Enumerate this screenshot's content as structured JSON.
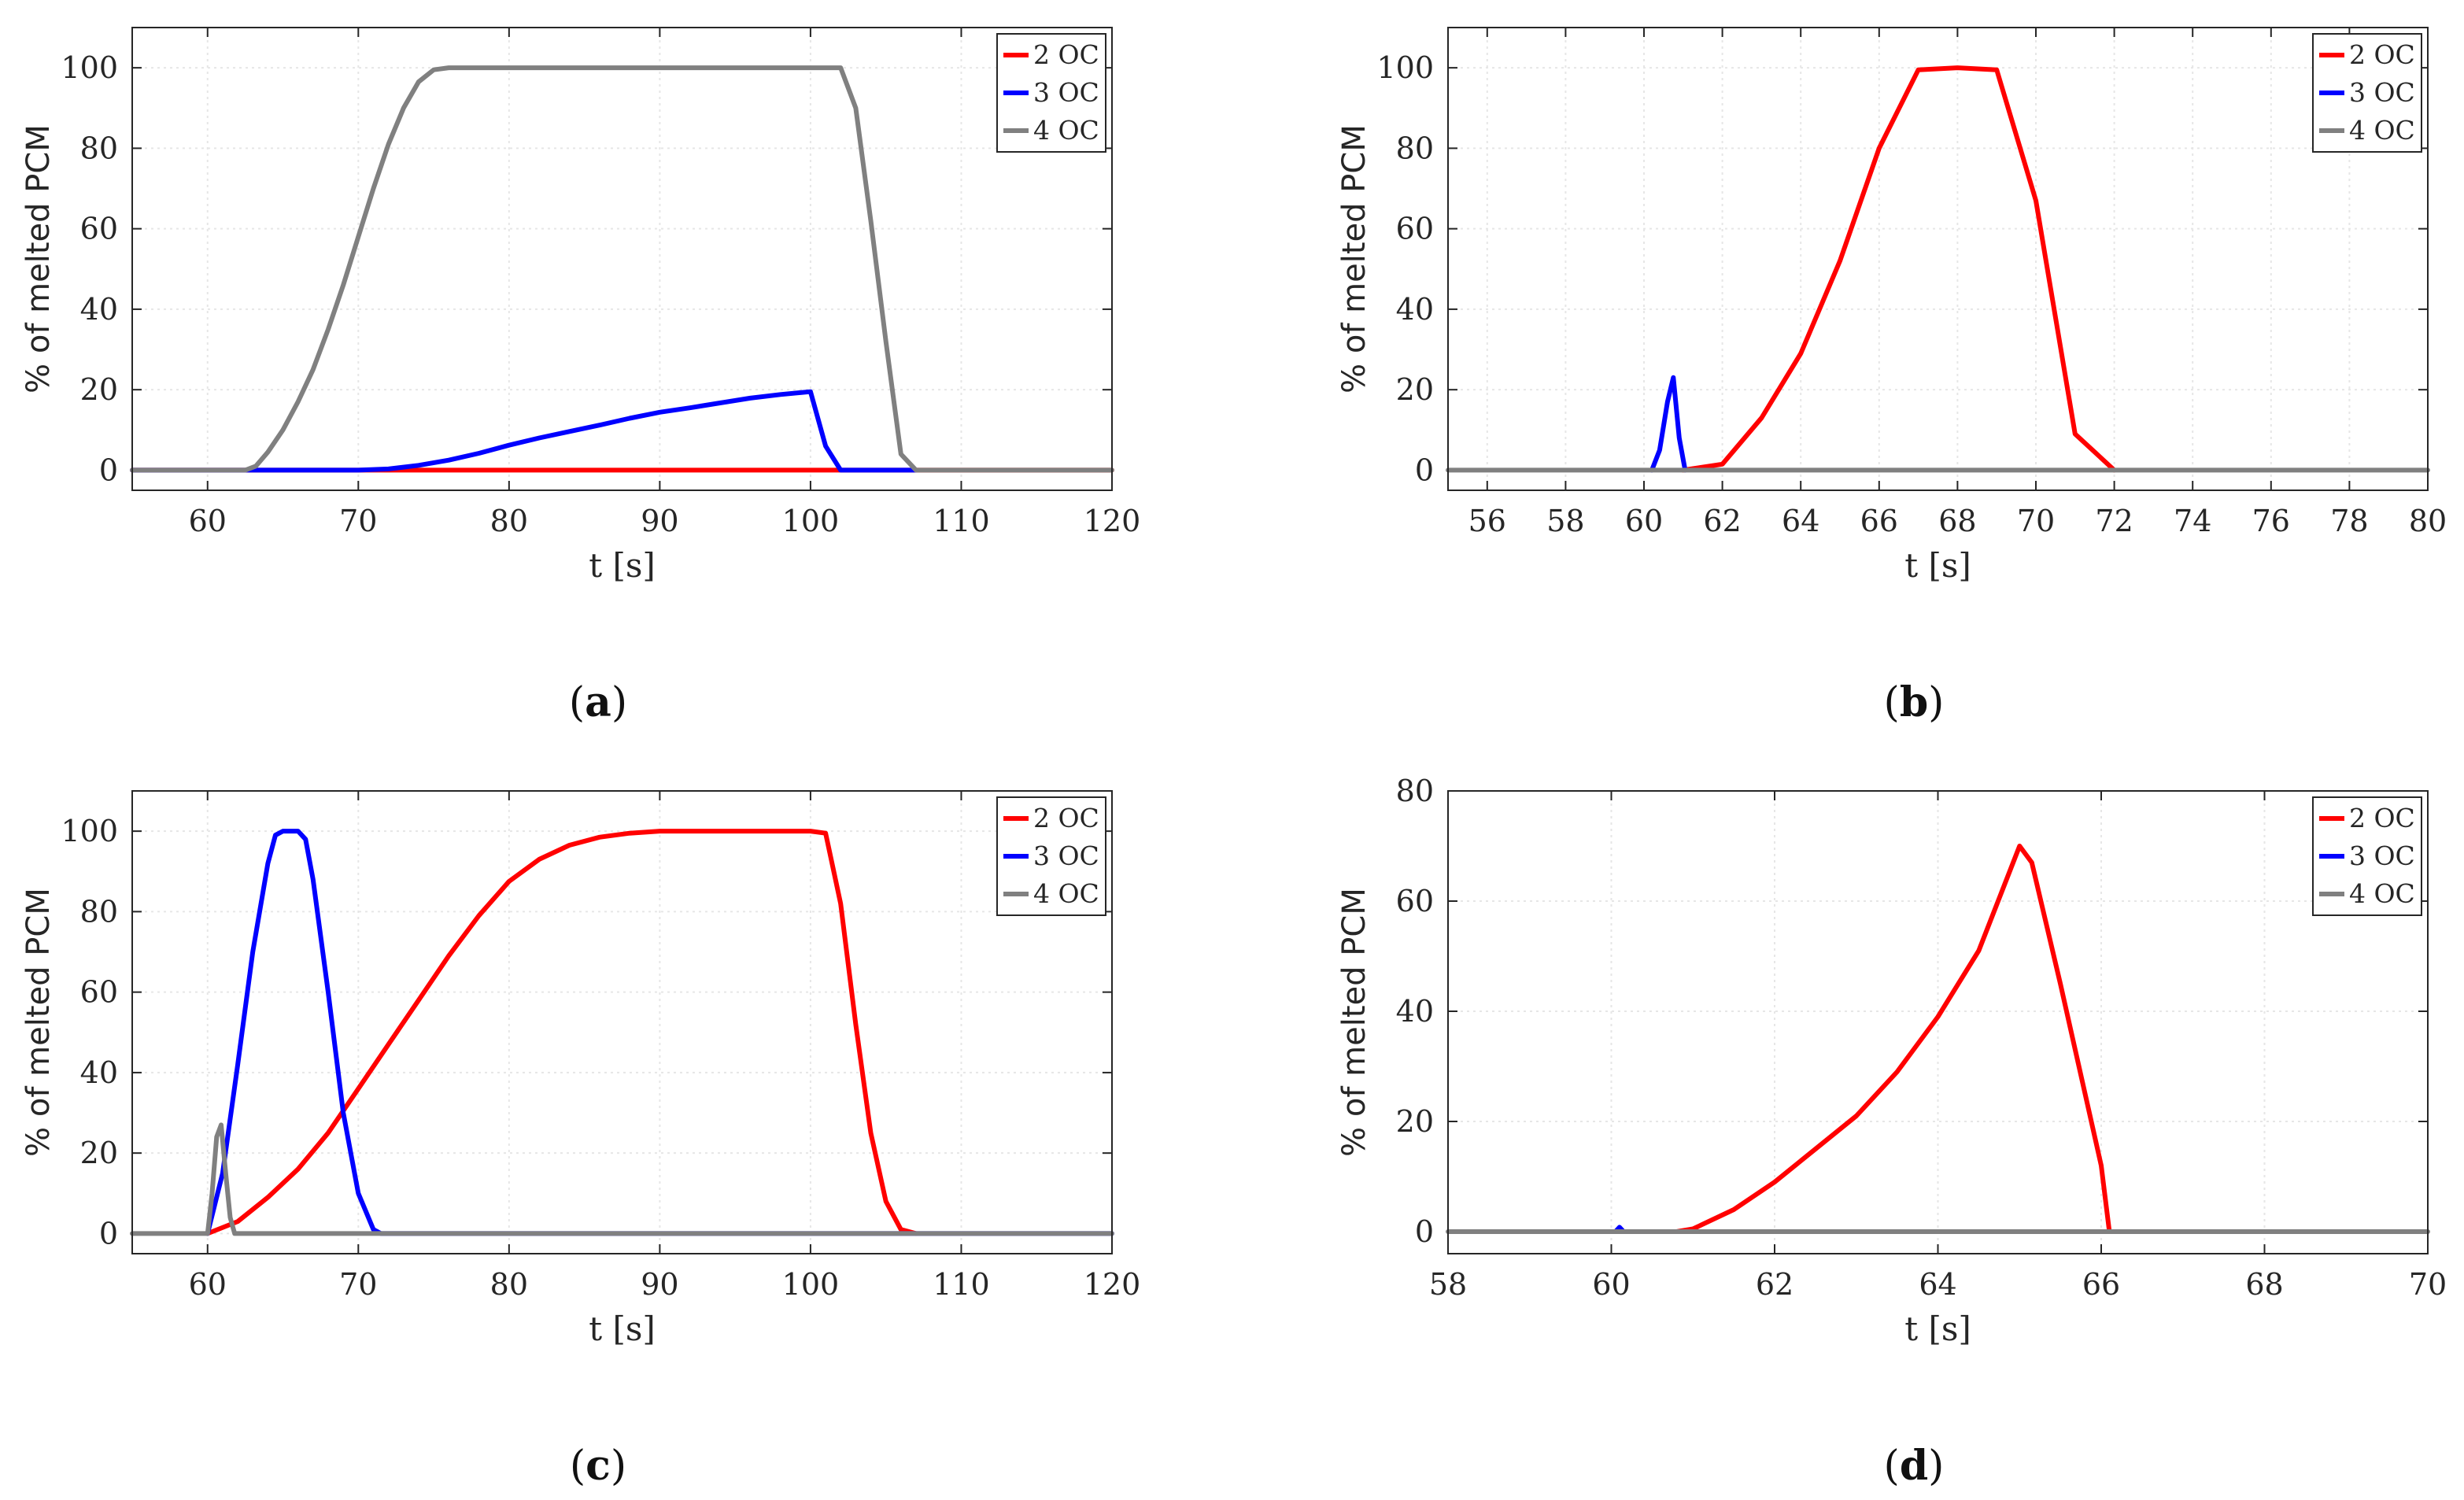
{
  "chart_data": [
    {
      "type": "line",
      "panel": "a",
      "caption": {
        "open": "(",
        "letter": "a",
        "close": ")"
      },
      "xlabel": "t [s]",
      "ylabel": "% of melted PCM",
      "xlim": [
        55,
        120
      ],
      "ylim": [
        -5,
        110
      ],
      "xticks": [
        60,
        70,
        80,
        90,
        100,
        110,
        120
      ],
      "yticks": [
        0,
        20,
        40,
        60,
        80,
        100
      ],
      "grid": true,
      "legend_position": "top-right",
      "series": [
        {
          "name": "2 OC",
          "color": "#ff0000",
          "x": [
            55,
            120
          ],
          "y": [
            0,
            0
          ]
        },
        {
          "name": "3 OC",
          "color": "#0000ff",
          "x": [
            55,
            70,
            72,
            74,
            76,
            78,
            80,
            82,
            84,
            86,
            88,
            90,
            92,
            94,
            96,
            98,
            100,
            101,
            102,
            107
          ],
          "y": [
            0,
            0,
            0.3,
            1.2,
            2.5,
            4.2,
            6.2,
            8.0,
            9.6,
            11.2,
            12.9,
            14.4,
            15.5,
            16.7,
            17.9,
            18.8,
            19.5,
            6,
            0,
            0
          ]
        },
        {
          "name": "4 OC",
          "color": "#808080",
          "x": [
            55,
            62.5,
            63.2,
            64,
            65,
            66,
            67,
            68,
            69,
            70,
            71,
            72,
            73,
            74,
            75,
            76,
            80,
            90,
            100,
            102,
            103,
            104,
            105,
            106,
            107,
            120
          ],
          "y": [
            0,
            0,
            1,
            4.5,
            10,
            17,
            25,
            35,
            46,
            58,
            70,
            81,
            90,
            96.5,
            99.5,
            100,
            100,
            100,
            100,
            100,
            90,
            62,
            32,
            4,
            0,
            0
          ]
        }
      ]
    },
    {
      "type": "line",
      "panel": "b",
      "caption": {
        "open": "(",
        "letter": "b",
        "close": ")"
      },
      "xlabel": "t [s]",
      "ylabel": "% of melted PCM",
      "xlim": [
        55,
        80
      ],
      "ylim": [
        -5,
        110
      ],
      "xticks": [
        56,
        58,
        60,
        62,
        64,
        66,
        68,
        70,
        72,
        74,
        76,
        78,
        80
      ],
      "yticks": [
        0,
        20,
        40,
        60,
        80,
        100
      ],
      "grid": true,
      "legend_position": "top-right",
      "series": [
        {
          "name": "2 OC",
          "color": "#ff0000",
          "x": [
            61,
            62,
            63,
            64,
            65,
            66,
            67,
            68,
            69,
            70,
            71,
            72
          ],
          "y": [
            0,
            1.5,
            13,
            29,
            52,
            80,
            99.5,
            100,
            99.5,
            67,
            9,
            0
          ]
        },
        {
          "name": "3 OC",
          "color": "#0000ff",
          "x": [
            60.2,
            60.4,
            60.6,
            60.75,
            60.9,
            61.05
          ],
          "y": [
            0,
            5,
            17,
            23,
            8,
            0
          ]
        },
        {
          "name": "4 OC",
          "color": "#808080",
          "x": [
            55,
            80
          ],
          "y": [
            0,
            0
          ]
        }
      ]
    },
    {
      "type": "line",
      "panel": "c",
      "caption": {
        "open": "(",
        "letter": "c",
        "close": ")"
      },
      "xlabel": "t [s]",
      "ylabel": "% of melted PCM",
      "xlim": [
        55,
        120
      ],
      "ylim": [
        -5,
        110
      ],
      "xticks": [
        60,
        70,
        80,
        90,
        100,
        110,
        120
      ],
      "yticks": [
        0,
        20,
        40,
        60,
        80,
        100
      ],
      "grid": true,
      "legend_position": "top-right",
      "series": [
        {
          "name": "2 OC",
          "color": "#ff0000",
          "x": [
            60,
            62,
            64,
            66,
            68,
            70,
            72,
            74,
            76,
            78,
            80,
            82,
            84,
            86,
            88,
            90,
            95,
            100,
            101,
            102,
            103,
            104,
            105,
            106,
            107
          ],
          "y": [
            0,
            3,
            9,
            16,
            25,
            36,
            47,
            58,
            69,
            79,
            87.5,
            93,
            96.5,
            98.5,
            99.5,
            100,
            100,
            100,
            99.5,
            82,
            52,
            25,
            8,
            1,
            0
          ]
        },
        {
          "name": "3 OC",
          "color": "#0000ff",
          "x": [
            60,
            61,
            62,
            63,
            64,
            64.5,
            65,
            66,
            66.5,
            67,
            68,
            69,
            70,
            71,
            71.5,
            120
          ],
          "y": [
            0,
            15,
            42,
            70,
            92,
            99,
            100,
            100,
            98,
            88,
            60,
            30,
            10,
            1,
            0,
            0
          ]
        },
        {
          "name": "4 OC",
          "color": "#808080",
          "x": [
            55,
            60,
            60.3,
            60.6,
            60.9,
            61.2,
            61.5,
            61.8,
            120
          ],
          "y": [
            0,
            0,
            10,
            24,
            27,
            15,
            4,
            0,
            0
          ]
        }
      ]
    },
    {
      "type": "line",
      "panel": "d",
      "caption": {
        "open": "(",
        "letter": "d",
        "close": ")"
      },
      "xlabel": "t [s]",
      "ylabel": "% of melted PCM",
      "xlim": [
        58,
        70
      ],
      "ylim": [
        -4,
        80
      ],
      "xticks": [
        58,
        60,
        62,
        64,
        66,
        68,
        70
      ],
      "yticks": [
        0,
        20,
        40,
        60,
        80
      ],
      "grid": true,
      "legend_position": "top-right",
      "series": [
        {
          "name": "2 OC",
          "color": "#ff0000",
          "x": [
            60.8,
            61,
            61.5,
            62,
            62.5,
            63,
            63.5,
            64,
            64.5,
            65,
            65.15,
            65.5,
            66,
            66.1
          ],
          "y": [
            0,
            0.5,
            4,
            9,
            15,
            21,
            29,
            39,
            51,
            70,
            67,
            45,
            12,
            0
          ]
        },
        {
          "name": "3 OC",
          "color": "#0000ff",
          "x": [
            60.05,
            60.1,
            60.15
          ],
          "y": [
            0,
            0.8,
            0
          ]
        },
        {
          "name": "4 OC",
          "color": "#808080",
          "x": [
            58,
            70
          ],
          "y": [
            0,
            0
          ]
        }
      ]
    }
  ]
}
